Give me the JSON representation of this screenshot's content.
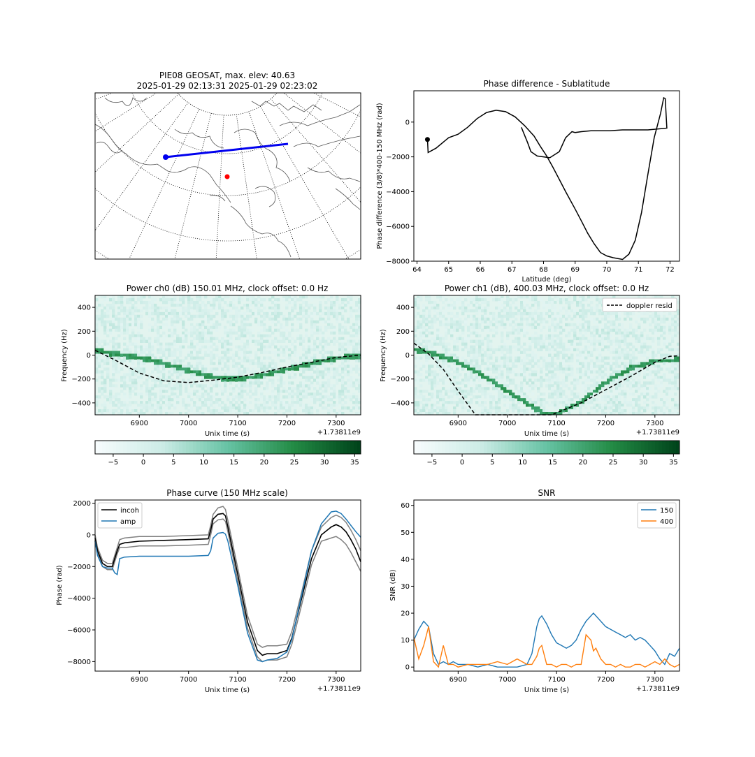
{
  "map_panel": {
    "title_line1": "PIE08 GEOSAT, max. elev: 40.63",
    "title_line2": "2025-01-29 02:13:31 2025-01-29 02:23:02",
    "track_color": "#0000ee",
    "station_color": "#ff0000"
  },
  "colors": {
    "black": "#000000",
    "gray": "#808080",
    "series_blue": "#1f77b4",
    "series_orange": "#ff7f0e",
    "greens_low": "#f7fcfd",
    "greens_high": "#00441b"
  },
  "chart_data": [
    {
      "id": "phase_diff",
      "type": "line",
      "title": "Phase difference - Sublatitude",
      "xlabel": "Latitude (deg)",
      "ylabel": "Phase difference (3/8)*400-150 MHz (rad)",
      "xlim": [
        63.9,
        72.3
      ],
      "ylim": [
        -8000,
        1800
      ],
      "xticks": [
        "64",
        "65",
        "66",
        "67",
        "68",
        "69",
        "70",
        "71",
        "72"
      ],
      "yticks": [
        "−8000",
        "−6000",
        "−4000",
        "−2000",
        "0"
      ],
      "x": [
        64.33,
        64.35,
        64.6,
        65.0,
        65.3,
        65.6,
        65.9,
        66.2,
        66.5,
        66.8,
        67.1,
        67.4,
        67.7,
        67.9,
        68.1,
        68.3,
        68.5,
        68.7,
        68.85,
        69.0,
        69.2,
        69.4,
        69.6,
        69.8,
        70.0,
        70.2,
        70.5,
        70.7,
        70.9,
        71.1,
        71.3,
        71.5,
        71.7,
        71.8,
        71.85,
        71.9,
        71.6,
        71.3,
        70.9,
        70.5,
        70.1,
        69.8,
        69.5,
        69.2,
        69.0,
        68.9,
        68.7,
        68.5,
        68.2,
        68.0,
        67.8,
        67.6,
        67.5,
        67.3
      ],
      "y": [
        -1000,
        -1750,
        -1500,
        -900,
        -700,
        -300,
        200,
        550,
        680,
        600,
        300,
        -200,
        -800,
        -1400,
        -1950,
        -2600,
        -3300,
        -4000,
        -4500,
        -5000,
        -5700,
        -6400,
        -7000,
        -7500,
        -7700,
        -7800,
        -7900,
        -7600,
        -6800,
        -5200,
        -3000,
        -900,
        500,
        1400,
        1350,
        -350,
        -400,
        -450,
        -450,
        -450,
        -500,
        -500,
        -500,
        -550,
        -600,
        -550,
        -900,
        -1700,
        -2050,
        -2000,
        -1950,
        -1700,
        -1200,
        -300
      ],
      "start_marker": {
        "x": 64.33,
        "y": -1000
      }
    },
    {
      "id": "power_ch0",
      "type": "heatmap",
      "title": "Power ch0 (dB) 150.01 MHz, clock offset: 0.0 Hz",
      "xlabel": "Unix time (s)",
      "ylabel": "Frequency (Hz)",
      "offset_text": "+1.73811e9",
      "xlim": [
        6810,
        7350
      ],
      "ylim": [
        -500,
        500
      ],
      "xticks": [
        "6900",
        "7000",
        "7100",
        "7200",
        "7300"
      ],
      "yticks": [
        "−400",
        "−200",
        "0",
        "200",
        "400"
      ],
      "signal_x": [
        6810,
        6850,
        6900,
        6950,
        7000,
        7040,
        7080,
        7120,
        7160,
        7200,
        7250,
        7300,
        7350
      ],
      "signal_y": [
        40,
        10,
        -20,
        -70,
        -130,
        -175,
        -200,
        -190,
        -160,
        -120,
        -70,
        -25,
        -5
      ],
      "doppler_x": [
        6810,
        6850,
        6900,
        6950,
        7000,
        7050,
        7100,
        7150,
        7200,
        7250,
        7300,
        7350
      ],
      "doppler_y": [
        40,
        -40,
        -150,
        -215,
        -230,
        -210,
        -185,
        -145,
        -100,
        -60,
        -20,
        0
      ],
      "colorbar": {
        "vmin": -8,
        "vmax": 36,
        "ticks": [
          "−5",
          "0",
          "5",
          "10",
          "15",
          "20",
          "25",
          "30",
          "35"
        ]
      }
    },
    {
      "id": "power_ch1",
      "type": "heatmap",
      "title": "Power ch1 (dB), 400.03 MHz, clock offset: 0.0 Hz",
      "xlabel": "Unix time (s)",
      "ylabel": "Frequency (Hz)",
      "offset_text": "+1.73811e9",
      "legend": [
        "doppler resid"
      ],
      "xlim": [
        6810,
        7350
      ],
      "ylim": [
        -500,
        500
      ],
      "xticks": [
        "6900",
        "7000",
        "7100",
        "7200",
        "7300"
      ],
      "yticks": [
        "−400",
        "−200",
        "0",
        "200",
        "400"
      ],
      "signal_x": [
        6810,
        6850,
        6900,
        6950,
        7000,
        7050,
        7080,
        7100,
        7150,
        7200,
        7250,
        7300,
        7350
      ],
      "signal_y": [
        50,
        10,
        -60,
        -170,
        -300,
        -430,
        -500,
        -500,
        -390,
        -230,
        -110,
        -50,
        -40
      ],
      "doppler_x": [
        6810,
        6840,
        6870,
        6900,
        6935,
        7090,
        7150,
        7200,
        7250,
        7300,
        7330,
        7350
      ],
      "doppler_y": [
        100,
        10,
        -120,
        -300,
        -500,
        -500,
        -400,
        -290,
        -180,
        -60,
        -10,
        -5
      ],
      "colorbar": {
        "vmin": -8,
        "vmax": 36,
        "ticks": [
          "−5",
          "0",
          "5",
          "10",
          "15",
          "20",
          "25",
          "30",
          "35"
        ]
      }
    },
    {
      "id": "phase_curve",
      "type": "line",
      "title": "Phase curve (150 MHz scale)",
      "xlabel": "Unix time (s)",
      "ylabel": "Phase (rad)",
      "offset_text": "+1.73811e9",
      "xlim": [
        6810,
        7350
      ],
      "ylim": [
        -8600,
        2200
      ],
      "xticks": [
        "6900",
        "7000",
        "7100",
        "7200",
        "7300"
      ],
      "yticks": [
        "−8000",
        "−6000",
        "−4000",
        "−2000",
        "0",
        "2000"
      ],
      "legend": [
        "incoh",
        "amp"
      ],
      "x": [
        6810,
        6815,
        6825,
        6835,
        6845,
        6850,
        6855,
        6860,
        6870,
        6900,
        6950,
        7000,
        7040,
        7045,
        7050,
        7060,
        7070,
        7075,
        7080,
        7100,
        7120,
        7140,
        7150,
        7160,
        7180,
        7200,
        7210,
        7230,
        7250,
        7270,
        7290,
        7300,
        7310,
        7320,
        7330,
        7340,
        7350
      ],
      "incoh": [
        -200,
        -1000,
        -1800,
        -2000,
        -2000,
        -1500,
        -1000,
        -600,
        -500,
        -400,
        -350,
        -300,
        -250,
        300,
        1000,
        1300,
        1350,
        1200,
        500,
        -2500,
        -5500,
        -7300,
        -7600,
        -7500,
        -7500,
        -7300,
        -6500,
        -4000,
        -1500,
        0,
        500,
        650,
        500,
        200,
        -300,
        -900,
        -1700
      ],
      "gray_upper": [
        0,
        -800,
        -1600,
        -1800,
        -1800,
        -1300,
        -800,
        -300,
        -200,
        -100,
        -100,
        -50,
        0,
        600,
        1300,
        1700,
        1800,
        1600,
        900,
        -2100,
        -5100,
        -6900,
        -7100,
        -7000,
        -7000,
        -6900,
        -6100,
        -3600,
        -1000,
        500,
        1100,
        1250,
        1100,
        800,
        300,
        -300,
        -1000
      ],
      "gray_lower": [
        -300,
        -1200,
        -2000,
        -2200,
        -2200,
        -1700,
        -1200,
        -800,
        -800,
        -700,
        -700,
        -650,
        -600,
        0,
        700,
        950,
        1000,
        850,
        200,
        -2900,
        -5900,
        -7700,
        -8000,
        -7900,
        -7900,
        -7700,
        -6900,
        -4400,
        -1900,
        -400,
        -200,
        -100,
        -300,
        -600,
        -1100,
        -1700,
        -2300
      ],
      "amp": [
        -400,
        -1300,
        -2000,
        -2100,
        -2100,
        -2400,
        -2500,
        -1500,
        -1400,
        -1350,
        -1350,
        -1350,
        -1300,
        -1000,
        -200,
        100,
        150,
        50,
        -400,
        -3200,
        -6200,
        -7900,
        -8000,
        -7900,
        -7800,
        -7400,
        -6600,
        -3800,
        -1000,
        700,
        1450,
        1500,
        1350,
        1000,
        600,
        200,
        -150
      ]
    },
    {
      "id": "snr",
      "type": "line",
      "title": "SNR",
      "xlabel": "Unix time (s)",
      "ylabel": "SNR (dB)",
      "offset_text": "+1.73811e9",
      "xlim": [
        6810,
        7350
      ],
      "ylim": [
        -1.5,
        62
      ],
      "xticks": [
        "6900",
        "7000",
        "7100",
        "7200",
        "7300"
      ],
      "yticks": [
        "0",
        "10",
        "20",
        "30",
        "40",
        "50",
        "60"
      ],
      "legend": [
        "150",
        "400"
      ],
      "x": [
        6810,
        6820,
        6830,
        6840,
        6850,
        6860,
        6870,
        6880,
        6890,
        6900,
        6920,
        6940,
        6960,
        6980,
        7000,
        7020,
        7040,
        7050,
        7060,
        7065,
        7070,
        7080,
        7090,
        7100,
        7110,
        7120,
        7130,
        7140,
        7150,
        7160,
        7170,
        7175,
        7180,
        7190,
        7200,
        7210,
        7220,
        7230,
        7240,
        7250,
        7260,
        7270,
        7280,
        7290,
        7300,
        7310,
        7320,
        7330,
        7340,
        7350
      ],
      "s150": [
        10,
        14,
        17,
        15,
        5,
        1,
        2,
        1,
        2,
        1,
        1,
        0,
        1,
        0,
        0,
        0,
        1,
        5,
        15,
        18,
        19,
        16,
        12,
        9,
        8,
        7,
        8,
        10,
        14,
        17,
        19,
        20,
        19,
        17,
        15,
        14,
        13,
        12,
        11,
        12,
        10,
        11,
        10,
        8,
        6,
        3,
        1,
        5,
        4,
        7
      ],
      "s400": [
        11,
        3,
        8,
        15,
        2,
        0,
        8,
        1,
        1,
        0,
        1,
        1,
        1,
        2,
        1,
        3,
        1,
        1,
        4,
        7,
        8,
        1,
        1,
        0,
        1,
        1,
        0,
        1,
        1,
        12,
        10,
        6,
        7,
        3,
        1,
        1,
        0,
        1,
        0,
        0,
        1,
        1,
        0,
        1,
        2,
        1,
        3,
        1,
        0,
        1
      ]
    }
  ]
}
